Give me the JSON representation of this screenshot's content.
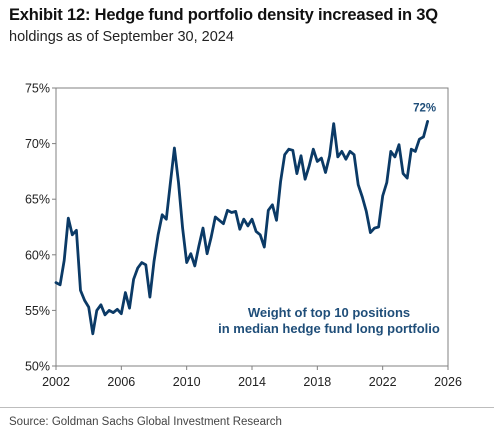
{
  "header": {
    "title": "Exhibit 12: Hedge fund portfolio density increased in 3Q",
    "subtitle": "holdings as of September 30, 2024"
  },
  "footer": {
    "source": "Source: Goldman Sachs Global Investment Research"
  },
  "colors": {
    "line": "#0b3a66",
    "annotation": "#1f4e79",
    "axis": "#808080",
    "text": "#222222"
  },
  "chart_data": {
    "type": "line",
    "xlim": [
      2002,
      2026
    ],
    "ylim": [
      50,
      75
    ],
    "xticks": [
      2002,
      2006,
      2010,
      2014,
      2018,
      2022,
      2026
    ],
    "yticks": [
      50,
      55,
      60,
      65,
      70,
      75
    ],
    "ytick_labels": [
      "50%",
      "55%",
      "60%",
      "65%",
      "70%",
      "75%"
    ],
    "grid": false,
    "legend": "none",
    "annotations": [
      {
        "text": "Weight of top 10 positions",
        "kind": "series-label"
      },
      {
        "text": "in median hedge fund long portfolio",
        "kind": "series-label"
      },
      {
        "text": "72%",
        "kind": "end-value",
        "x": 2024.75,
        "y": 72
      }
    ],
    "series": [
      {
        "x": [
          2002.0,
          2002.25,
          2002.5,
          2002.75,
          2003.0,
          2003.25,
          2003.5,
          2003.75,
          2004.0,
          2004.25,
          2004.5,
          2004.75,
          2005.0,
          2005.25,
          2005.5,
          2005.75,
          2006.0,
          2006.25,
          2006.5,
          2006.75,
          2007.0,
          2007.25,
          2007.5,
          2007.75,
          2008.0,
          2008.25,
          2008.5,
          2008.75,
          2009.0,
          2009.25,
          2009.5,
          2009.75,
          2010.0,
          2010.25,
          2010.5,
          2010.75,
          2011.0,
          2011.25,
          2011.5,
          2011.75,
          2012.0,
          2012.25,
          2012.5,
          2012.75,
          2013.0,
          2013.25,
          2013.5,
          2013.75,
          2014.0,
          2014.25,
          2014.5,
          2014.75,
          2015.0,
          2015.25,
          2015.5,
          2015.75,
          2016.0,
          2016.25,
          2016.5,
          2016.75,
          2017.0,
          2017.25,
          2017.5,
          2017.75,
          2018.0,
          2018.25,
          2018.5,
          2018.75,
          2019.0,
          2019.25,
          2019.5,
          2019.75,
          2020.0,
          2020.25,
          2020.5,
          2020.75,
          2021.0,
          2021.25,
          2021.5,
          2021.75,
          2022.0,
          2022.25,
          2022.5,
          2022.75,
          2023.0,
          2023.25,
          2023.5,
          2023.75,
          2024.0,
          2024.25,
          2024.5,
          2024.75
        ],
        "values": [
          57.5,
          57.3,
          59.5,
          63.3,
          61.8,
          62.2,
          56.8,
          55.9,
          55.3,
          52.9,
          55.0,
          55.5,
          54.6,
          55.0,
          54.8,
          55.1,
          54.7,
          56.6,
          55.2,
          57.8,
          58.8,
          59.3,
          59.1,
          56.2,
          59.4,
          61.8,
          63.6,
          63.2,
          66.4,
          69.6,
          66.5,
          62.4,
          59.3,
          60.1,
          59.0,
          60.8,
          62.4,
          60.1,
          61.6,
          63.4,
          63.1,
          62.8,
          64.0,
          63.8,
          63.9,
          62.3,
          63.2,
          62.6,
          63.2,
          62.1,
          61.8,
          60.7,
          64.0,
          64.5,
          63.1,
          66.6,
          69.0,
          69.5,
          69.4,
          67.3,
          68.9,
          66.8,
          68.0,
          69.5,
          68.4,
          68.7,
          67.4,
          68.9,
          71.8,
          68.8,
          69.3,
          68.6,
          69.3,
          69.0,
          66.3,
          65.2,
          63.9,
          62.0,
          62.4,
          62.5,
          65.3,
          66.5,
          69.3,
          68.8,
          69.9,
          67.3,
          66.9,
          69.5,
          69.3,
          70.4,
          70.6,
          72.0
        ]
      }
    ]
  }
}
